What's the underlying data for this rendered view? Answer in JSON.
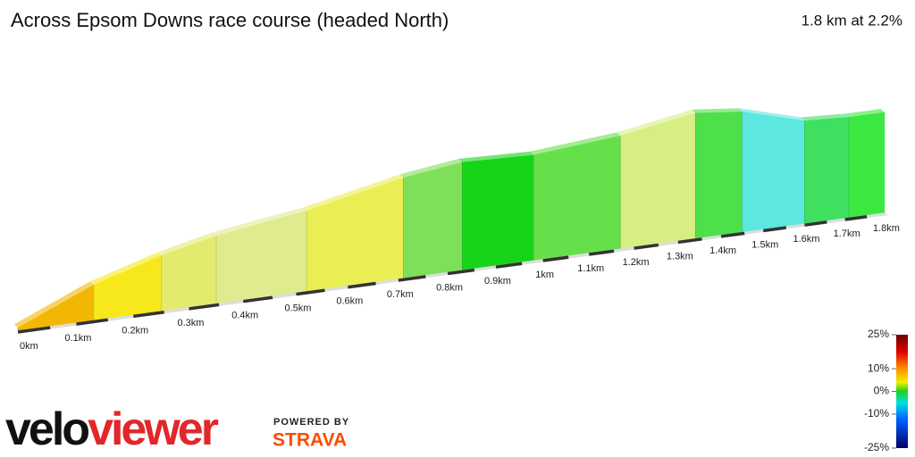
{
  "chart_data": {
    "type": "elevation-profile",
    "title": "Across Epsom Downs race course (headed North)",
    "subtitle": "1.8 km at 2.2%",
    "x": [
      0,
      0.13,
      0.25,
      0.35,
      0.52,
      0.71,
      0.83,
      0.98,
      1.17,
      1.34,
      1.45,
      1.6,
      1.71,
      1.8
    ],
    "values": [
      1,
      14,
      22,
      27,
      32,
      40,
      43,
      42,
      45,
      50,
      48,
      41,
      40,
      40
    ],
    "segment_colors": [
      "#f2b705",
      "#f6e81a",
      "#e4ea6e",
      "#dfeb8e",
      "#e9ef52",
      "#7ee05a",
      "#18d418",
      "#66e04a",
      "#d6ee84",
      "#4ee04a",
      "#5ce8e0",
      "#3fe060",
      "#3be840"
    ],
    "xlim": [
      0,
      1.8
    ],
    "xticks": [
      {
        "value": 0,
        "label": "0km"
      },
      {
        "value": 0.1,
        "label": "0.1km"
      },
      {
        "value": 0.2,
        "label": "0.2km"
      },
      {
        "value": 0.3,
        "label": "0.3km"
      },
      {
        "value": 0.4,
        "label": "0.4km"
      },
      {
        "value": 0.5,
        "label": "0.5km"
      },
      {
        "value": 0.6,
        "label": "0.6km"
      },
      {
        "value": 0.7,
        "label": "0.7km"
      },
      {
        "value": 0.8,
        "label": "0.8km"
      },
      {
        "value": 0.9,
        "label": "0.9km"
      },
      {
        "value": 1,
        "label": "1km"
      },
      {
        "value": 1.1,
        "label": "1.1km"
      },
      {
        "value": 1.2,
        "label": "1.2km"
      },
      {
        "value": 1.3,
        "label": "1.3km"
      },
      {
        "value": 1.4,
        "label": "1.4km"
      },
      {
        "value": 1.5,
        "label": "1.5km"
      },
      {
        "value": 1.6,
        "label": "1.6km"
      },
      {
        "value": 1.7,
        "label": "1.7km"
      },
      {
        "value": 1.8,
        "label": "1.8km"
      }
    ],
    "gradient_lim": [
      -25,
      25
    ],
    "gradient_ticks": [
      {
        "value": 25,
        "label": "25%"
      },
      {
        "value": 10,
        "label": "10%"
      },
      {
        "value": 0,
        "label": "0%"
      },
      {
        "value": -10,
        "label": "-10%"
      },
      {
        "value": -25,
        "label": "-25%"
      }
    ]
  },
  "logo": {
    "velo": "velo",
    "viewer": "viewer",
    "powered": "POWERED BY",
    "strava": "STRAVA"
  }
}
